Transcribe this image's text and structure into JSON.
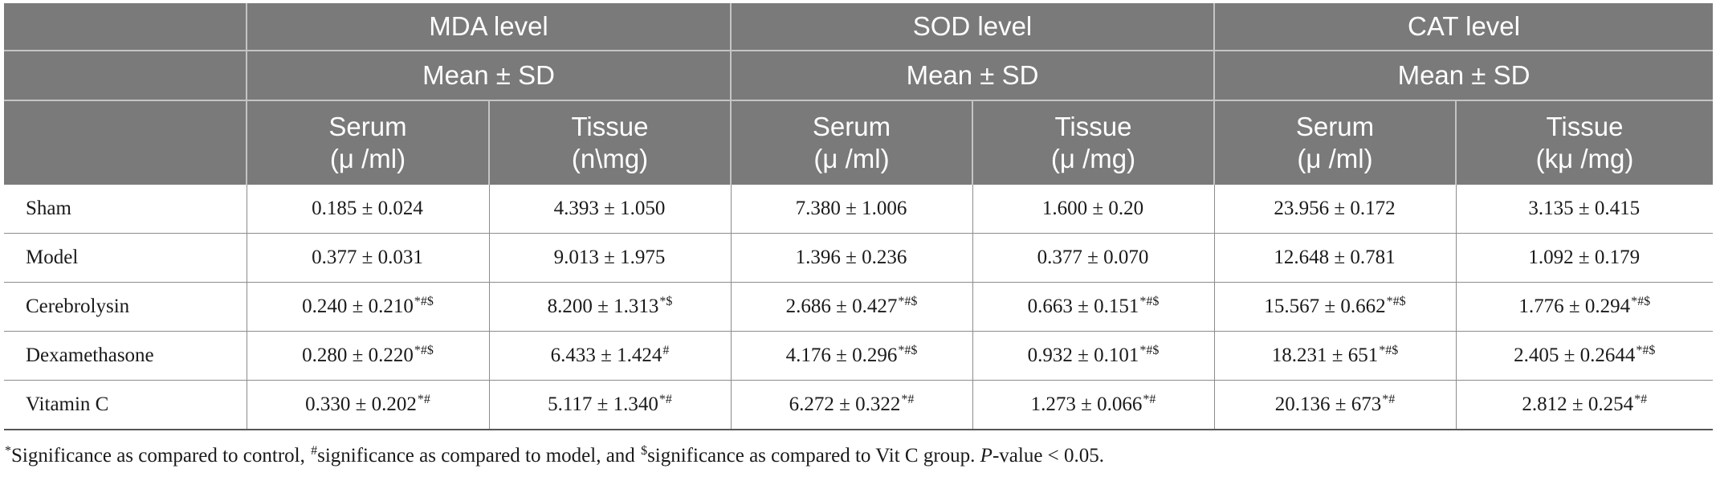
{
  "header": {
    "groups": [
      {
        "title": "MDA level",
        "stat": "Mean ± SD"
      },
      {
        "title": "SOD level",
        "stat": "Mean ± SD"
      },
      {
        "title": "CAT level",
        "stat": "Mean ± SD"
      }
    ],
    "columns": [
      {
        "name": "Serum",
        "unit": "(μ /ml)"
      },
      {
        "name": "Tissue",
        "unit": "(n\\mg)"
      },
      {
        "name": "Serum",
        "unit": "(μ /ml)"
      },
      {
        "name": "Tissue",
        "unit": "(μ /mg)"
      },
      {
        "name": "Serum",
        "unit": "(μ /ml)"
      },
      {
        "name": "Tissue",
        "unit": "(kμ /mg)"
      }
    ]
  },
  "rows": [
    {
      "label": "Sham",
      "cells": [
        {
          "v": "0.185 ± 0.024",
          "s": ""
        },
        {
          "v": "4.393 ± 1.050",
          "s": ""
        },
        {
          "v": "7.380 ± 1.006",
          "s": ""
        },
        {
          "v": "1.600 ± 0.20",
          "s": ""
        },
        {
          "v": "23.956 ± 0.172",
          "s": ""
        },
        {
          "v": "3.135 ± 0.415",
          "s": ""
        }
      ]
    },
    {
      "label": "Model",
      "cells": [
        {
          "v": "0.377 ± 0.031",
          "s": ""
        },
        {
          "v": "9.013 ± 1.975",
          "s": ""
        },
        {
          "v": "1.396 ± 0.236",
          "s": ""
        },
        {
          "v": "0.377 ± 0.070",
          "s": ""
        },
        {
          "v": "12.648 ± 0.781",
          "s": ""
        },
        {
          "v": "1.092 ± 0.179",
          "s": ""
        }
      ]
    },
    {
      "label": "Cerebrolysin",
      "cells": [
        {
          "v": "0.240 ± 0.210",
          "s": "*#$"
        },
        {
          "v": "8.200 ± 1.313",
          "s": "*$"
        },
        {
          "v": "2.686 ± 0.427",
          "s": "*#$"
        },
        {
          "v": "0.663 ± 0.151",
          "s": "*#$"
        },
        {
          "v": "15.567 ± 0.662",
          "s": "*#$"
        },
        {
          "v": "1.776 ± 0.294",
          "s": "*#$"
        }
      ]
    },
    {
      "label": "Dexamethasone",
      "cells": [
        {
          "v": "0.280 ± 0.220",
          "s": "*#$"
        },
        {
          "v": "6.433 ± 1.424",
          "s": "#"
        },
        {
          "v": "4.176 ± 0.296",
          "s": "*#$"
        },
        {
          "v": "0.932 ± 0.101",
          "s": "*#$"
        },
        {
          "v": "18.231 ± 651",
          "s": "*#$"
        },
        {
          "v": "2.405 ± 0.2644",
          "s": "*#$"
        }
      ]
    },
    {
      "label": "Vitamin C",
      "cells": [
        {
          "v": "0.330 ± 0.202",
          "s": "*#"
        },
        {
          "v": "5.117 ± 1.340",
          "s": "*#"
        },
        {
          "v": "6.272 ± 0.322",
          "s": "*#"
        },
        {
          "v": "1.273 ± 0.066",
          "s": "*#"
        },
        {
          "v": "20.136 ± 673",
          "s": "*#"
        },
        {
          "v": "2.812 ± 0.254",
          "s": "*#"
        }
      ]
    }
  ],
  "footnote": {
    "m1": "*",
    "t1": "Significance as compared to control, ",
    "m2": "#",
    "t2": "significance as compared to model, and ",
    "m3": "$",
    "t3": "significance as compared to Vit C group. ",
    "p": "P",
    "t4": "-value < 0.05."
  }
}
